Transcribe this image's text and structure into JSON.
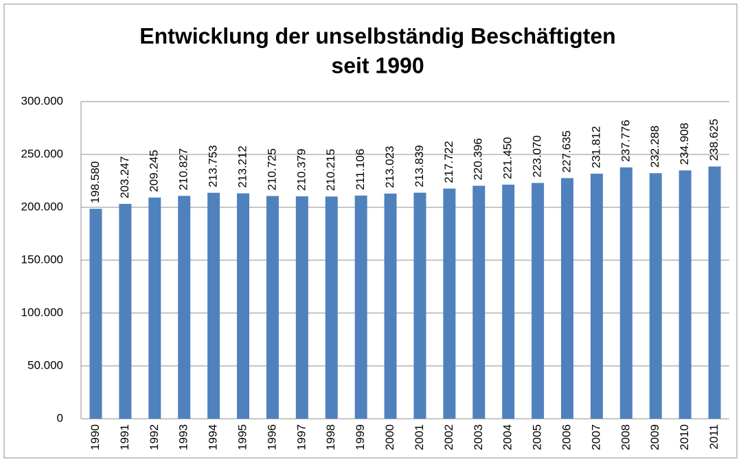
{
  "chart_data": {
    "type": "bar",
    "title": [
      "Entwicklung der unselbständig Beschäftigten",
      "seit 1990"
    ],
    "categories": [
      "1990",
      "1991",
      "1992",
      "1993",
      "1994",
      "1995",
      "1996",
      "1997",
      "1998",
      "1999",
      "2000",
      "2001",
      "2002",
      "2003",
      "2004",
      "2005",
      "2006",
      "2007",
      "2008",
      "2009",
      "2010",
      "2011"
    ],
    "values": [
      198580,
      203247,
      209245,
      210827,
      213753,
      213212,
      210725,
      210379,
      210215,
      211106,
      213023,
      213839,
      217722,
      220396,
      221450,
      223070,
      227635,
      231812,
      237776,
      232288,
      234908,
      238625
    ],
    "value_labels": [
      "198.580",
      "203.247",
      "209.245",
      "210.827",
      "213.753",
      "213.212",
      "210.725",
      "210.379",
      "210.215",
      "211.106",
      "213.023",
      "213.839",
      "217.722",
      "220.396",
      "221.450",
      "223.070",
      "227.635",
      "231.812",
      "237.776",
      "232.288",
      "234.908",
      "238.625"
    ],
    "color": "#4f81bd",
    "ylim": [
      0,
      300000
    ],
    "yticks": [
      0,
      {
        "value": 50000,
        "label": "50.000"
      },
      {
        "value": 100000,
        "label": "100.000"
      },
      {
        "value": 150000,
        "label": "150.000"
      },
      {
        "value": 200000,
        "label": "200.000"
      },
      {
        "value": 250000,
        "label": "250.000"
      },
      {
        "value": 300000,
        "label": "300.000"
      }
    ],
    "grid": true
  }
}
